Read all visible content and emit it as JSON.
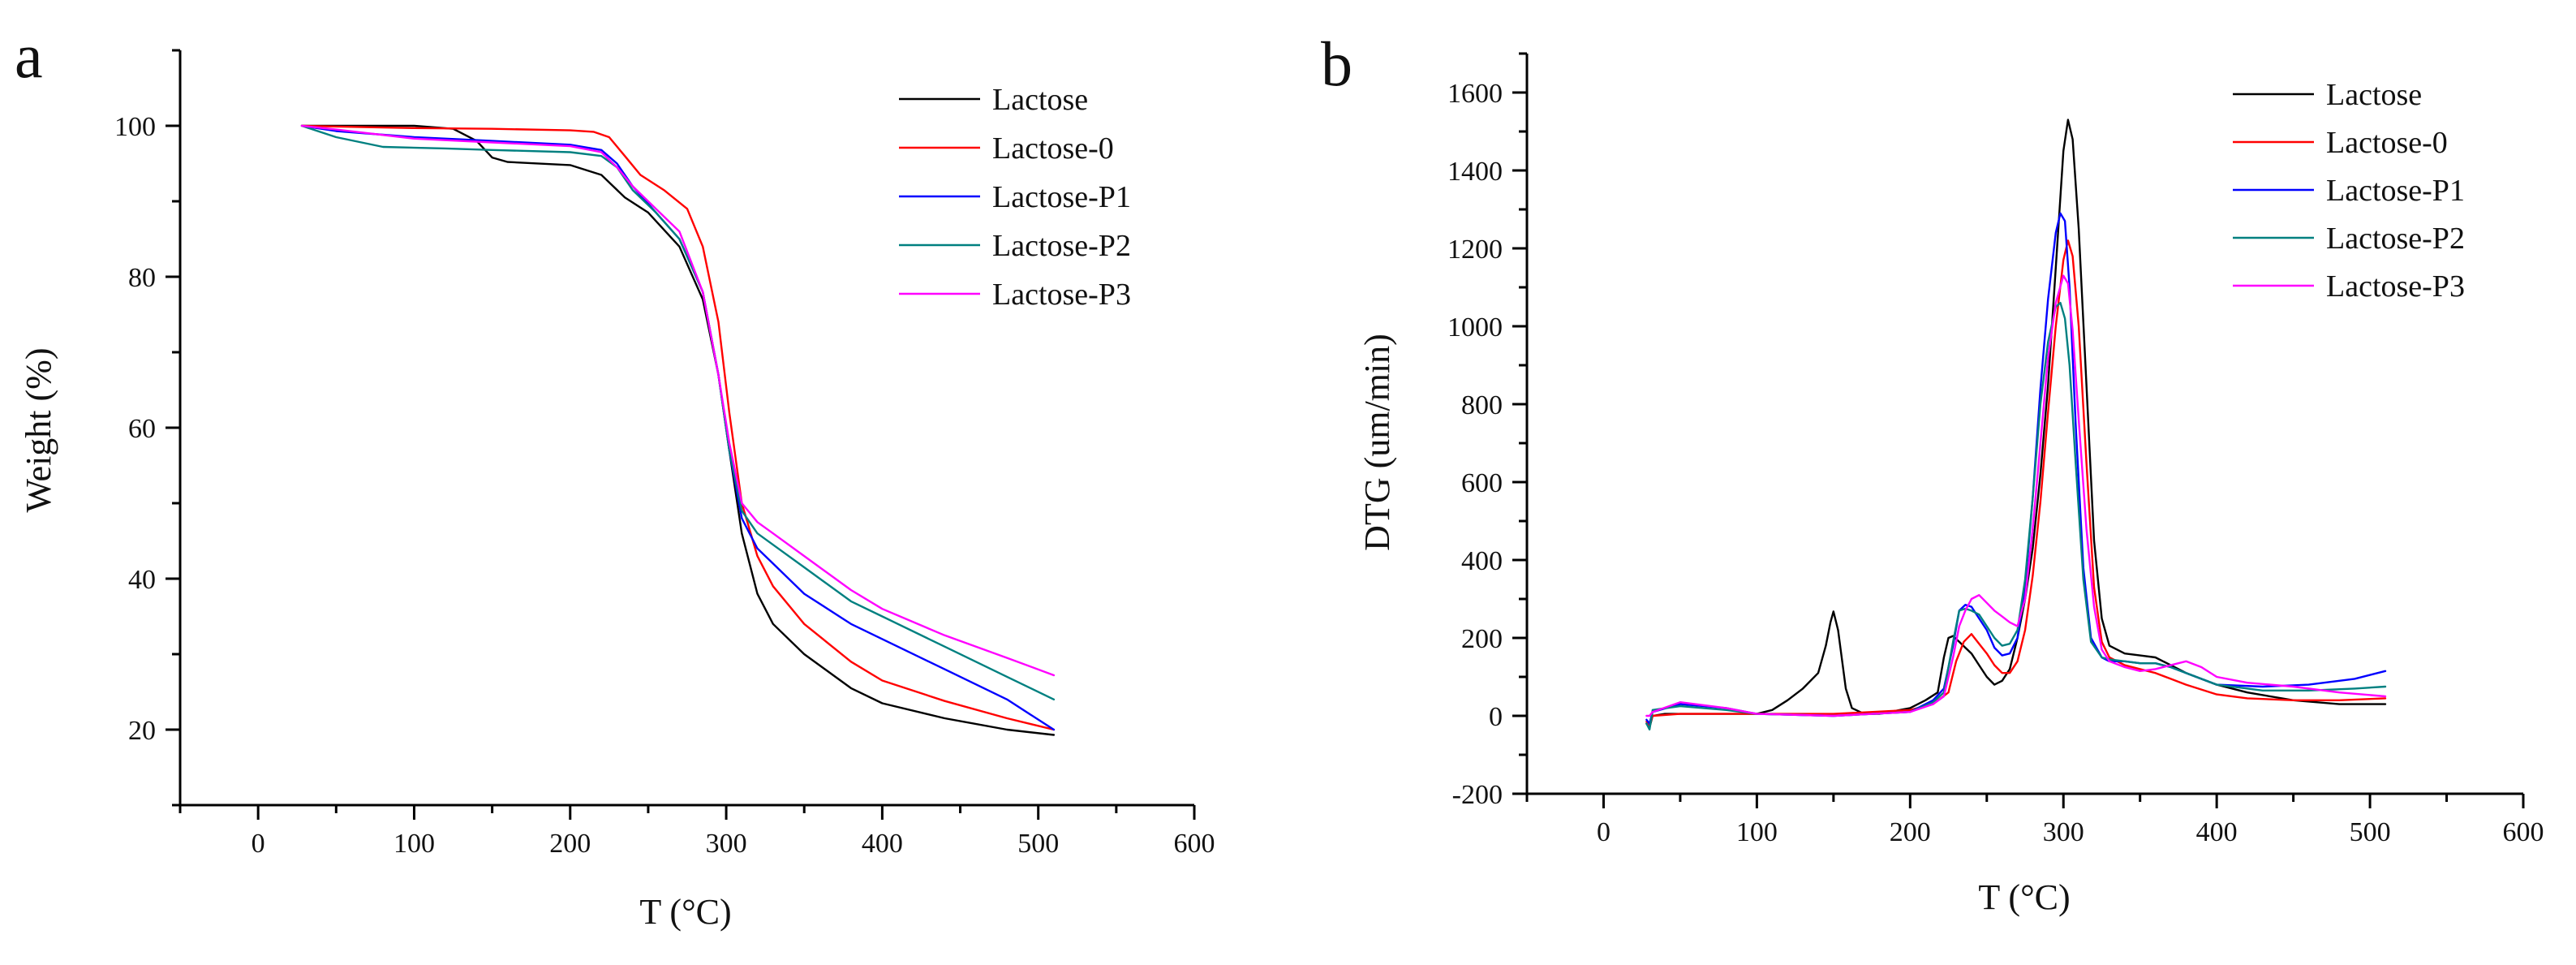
{
  "chart_data": [
    {
      "type": "line",
      "panel_label": "a",
      "title": "",
      "xlabel": "T (°C)",
      "ylabel": "Weight (%)",
      "xlim": [
        -50,
        600
      ],
      "ylim": [
        10,
        110
      ],
      "xticks": [
        0,
        100,
        200,
        300,
        400,
        500,
        600
      ],
      "yticks": [
        20,
        40,
        60,
        80,
        100
      ],
      "grid": false,
      "legend_position": "top-right",
      "series": [
        {
          "name": "Lactose",
          "color": "#000000",
          "x": [
            28,
            50,
            100,
            125,
            140,
            150,
            160,
            200,
            220,
            235,
            250,
            270,
            285,
            295,
            302,
            310,
            320,
            330,
            350,
            380,
            400,
            440,
            480,
            510
          ],
          "y": [
            100,
            100,
            100,
            99.6,
            98,
            95.8,
            95.2,
            94.8,
            93.5,
            90.5,
            88.5,
            84,
            77,
            67,
            57,
            46,
            38,
            34,
            30,
            25.5,
            23.5,
            21.5,
            20,
            19.3
          ]
        },
        {
          "name": "Lactose-0",
          "color": "#ff0000",
          "x": [
            28,
            50,
            100,
            150,
            200,
            215,
            225,
            235,
            245,
            260,
            275,
            285,
            295,
            302,
            310,
            320,
            330,
            350,
            380,
            400,
            440,
            480,
            510
          ],
          "y": [
            100,
            99.9,
            99.7,
            99.6,
            99.4,
            99.2,
            98.5,
            96,
            93.5,
            91.5,
            89,
            84,
            74,
            62,
            50,
            43,
            39,
            34,
            29,
            26.5,
            23.8,
            21.5,
            20
          ]
        },
        {
          "name": "Lactose-P1",
          "color": "#0000ff",
          "x": [
            28,
            50,
            100,
            150,
            200,
            220,
            230,
            240,
            255,
            270,
            285,
            295,
            302,
            310,
            320,
            330,
            350,
            380,
            400,
            440,
            480,
            510
          ],
          "y": [
            100,
            99.3,
            98.5,
            98,
            97.5,
            96.8,
            95,
            92,
            88.5,
            85,
            78,
            67,
            57,
            48,
            44,
            42,
            38,
            34,
            32,
            28,
            24,
            20
          ]
        },
        {
          "name": "Lactose-P2",
          "color": "#008080",
          "x": [
            28,
            50,
            80,
            120,
            150,
            200,
            220,
            230,
            240,
            255,
            270,
            285,
            295,
            302,
            310,
            320,
            330,
            350,
            380,
            400,
            440,
            480,
            510
          ],
          "y": [
            100,
            98.5,
            97.2,
            97,
            96.8,
            96.5,
            96,
            94.5,
            91.5,
            88.5,
            85,
            78,
            67,
            57,
            49,
            46,
            44.5,
            41.5,
            37,
            35,
            31,
            27,
            24
          ]
        },
        {
          "name": "Lactose-P3",
          "color": "#ff00ff",
          "x": [
            28,
            50,
            100,
            150,
            200,
            220,
            230,
            240,
            255,
            270,
            285,
            295,
            302,
            310,
            320,
            330,
            350,
            380,
            400,
            440,
            480,
            510
          ],
          "y": [
            100,
            99.5,
            98.3,
            97.8,
            97.3,
            96.5,
            94.5,
            92,
            89,
            86,
            78,
            67,
            58,
            50,
            47.5,
            46,
            43,
            38.5,
            36,
            32.5,
            29.5,
            27.2
          ]
        }
      ]
    },
    {
      "type": "line",
      "panel_label": "b",
      "title": "",
      "xlabel": "T (°C)",
      "ylabel": "DTG (um/min)",
      "xlim": [
        -50,
        600
      ],
      "ylim": [
        -200,
        1700
      ],
      "xticks": [
        0,
        100,
        200,
        300,
        400,
        500,
        600
      ],
      "yticks": [
        -200,
        0,
        200,
        400,
        600,
        800,
        1000,
        1200,
        1400,
        1600
      ],
      "grid": false,
      "legend_position": "top-right",
      "series": [
        {
          "name": "Lactose",
          "color": "#000000",
          "x": [
            28,
            30,
            32,
            40,
            60,
            80,
            100,
            110,
            120,
            130,
            140,
            145,
            148,
            150,
            153,
            158,
            162,
            170,
            180,
            200,
            210,
            218,
            222,
            225,
            228,
            232,
            236,
            240,
            245,
            250,
            255,
            260,
            265,
            270,
            275,
            280,
            285,
            290,
            295,
            300,
            303,
            306,
            310,
            315,
            320,
            325,
            330,
            340,
            350,
            360,
            370,
            380,
            400,
            420,
            450,
            480,
            510
          ],
          "y": [
            -20,
            -30,
            0,
            5,
            5,
            5,
            5,
            15,
            40,
            70,
            110,
            180,
            240,
            268,
            220,
            70,
            20,
            5,
            5,
            20,
            40,
            60,
            150,
            200,
            205,
            190,
            175,
            160,
            130,
            100,
            80,
            90,
            120,
            200,
            300,
            430,
            620,
            850,
            1150,
            1450,
            1530,
            1480,
            1250,
            850,
            450,
            250,
            180,
            160,
            155,
            150,
            130,
            110,
            80,
            60,
            40,
            30,
            30
          ]
        },
        {
          "name": "Lactose-0",
          "color": "#ff0000",
          "x": [
            28,
            30,
            32,
            50,
            100,
            150,
            200,
            215,
            225,
            230,
            235,
            240,
            245,
            250,
            255,
            260,
            265,
            270,
            275,
            280,
            285,
            290,
            295,
            300,
            303,
            306,
            310,
            315,
            320,
            325,
            330,
            340,
            350,
            360,
            370,
            380,
            400,
            420,
            450,
            480,
            510
          ],
          "y": [
            -15,
            -25,
            0,
            5,
            5,
            5,
            15,
            30,
            60,
            140,
            190,
            210,
            185,
            160,
            130,
            110,
            110,
            140,
            220,
            360,
            550,
            780,
            1000,
            1170,
            1220,
            1180,
            1000,
            650,
            330,
            190,
            150,
            130,
            120,
            110,
            95,
            80,
            55,
            45,
            40,
            40,
            45
          ]
        },
        {
          "name": "Lactose-P1",
          "color": "#0000ff",
          "x": [
            28,
            30,
            32,
            50,
            80,
            100,
            150,
            200,
            215,
            222,
            228,
            232,
            236,
            240,
            245,
            250,
            255,
            260,
            265,
            270,
            275,
            280,
            285,
            290,
            295,
            298,
            301,
            304,
            308,
            313,
            318,
            325,
            330,
            340,
            350,
            360,
            370,
            380,
            400,
            430,
            460,
            490,
            510
          ],
          "y": [
            -10,
            -20,
            10,
            30,
            20,
            5,
            0,
            10,
            40,
            70,
            180,
            270,
            285,
            280,
            250,
            220,
            175,
            155,
            160,
            200,
            330,
            560,
            840,
            1070,
            1240,
            1290,
            1270,
            1100,
            750,
            380,
            200,
            150,
            140,
            140,
            135,
            135,
            125,
            110,
            80,
            75,
            80,
            95,
            115
          ]
        },
        {
          "name": "Lactose-P2",
          "color": "#008080",
          "x": [
            28,
            30,
            32,
            50,
            80,
            100,
            150,
            200,
            215,
            222,
            228,
            232,
            236,
            240,
            245,
            250,
            255,
            260,
            265,
            270,
            275,
            280,
            285,
            290,
            295,
            298,
            301,
            304,
            308,
            313,
            318,
            325,
            330,
            340,
            350,
            360,
            370,
            380,
            400,
            430,
            460,
            490,
            510
          ],
          "y": [
            -20,
            -35,
            15,
            25,
            15,
            5,
            0,
            10,
            35,
            60,
            190,
            270,
            275,
            270,
            260,
            230,
            200,
            180,
            185,
            220,
            350,
            560,
            800,
            960,
            1050,
            1060,
            1020,
            900,
            650,
            350,
            190,
            150,
            145,
            140,
            135,
            135,
            125,
            110,
            80,
            65,
            65,
            70,
            75
          ]
        },
        {
          "name": "Lactose-P3",
          "color": "#ff00ff",
          "x": [
            28,
            30,
            32,
            50,
            80,
            100,
            150,
            200,
            215,
            222,
            228,
            232,
            236,
            240,
            245,
            250,
            255,
            260,
            265,
            270,
            275,
            280,
            285,
            290,
            295,
            300,
            303,
            306,
            310,
            315,
            320,
            325,
            330,
            340,
            350,
            360,
            370,
            380,
            390,
            400,
            420,
            450,
            480,
            510
          ],
          "y": [
            0,
            0,
            10,
            35,
            20,
            5,
            0,
            10,
            30,
            50,
            150,
            230,
            270,
            300,
            310,
            290,
            270,
            255,
            240,
            230,
            300,
            480,
            700,
            920,
            1060,
            1130,
            1110,
            990,
            760,
            480,
            280,
            170,
            140,
            125,
            115,
            120,
            130,
            140,
            125,
            100,
            85,
            75,
            60,
            50
          ]
        }
      ]
    }
  ]
}
